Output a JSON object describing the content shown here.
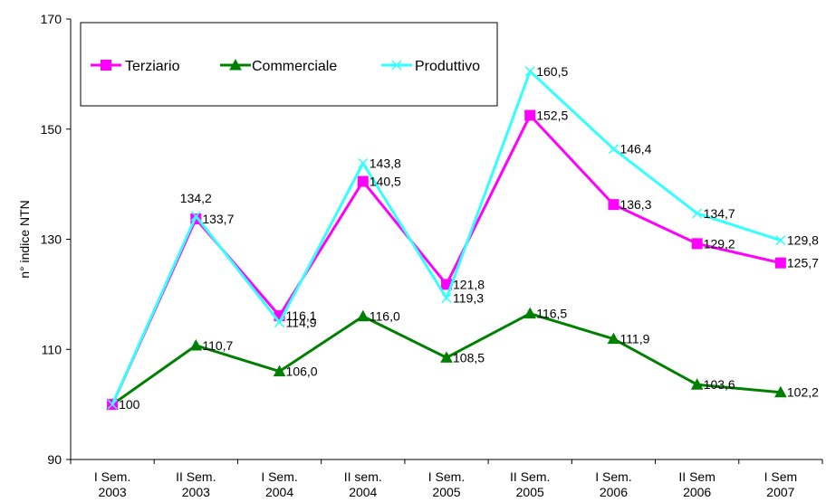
{
  "chart_data": {
    "type": "line",
    "title": "",
    "ylabel": "n° indice NTN",
    "ylim": [
      90,
      170
    ],
    "yticks": [
      90,
      110,
      130,
      150,
      170
    ],
    "grid": false,
    "legend_position": "top-left",
    "categories": [
      [
        "I Sem.",
        "2003"
      ],
      [
        "II Sem.",
        "2003"
      ],
      [
        "I Sem.",
        "2004"
      ],
      [
        "II sem.",
        "2004"
      ],
      [
        "I Sem.",
        "2005"
      ],
      [
        "II Sem.",
        "2005"
      ],
      [
        "I Sem.",
        "2006"
      ],
      [
        "II Sem",
        "2006"
      ],
      [
        "I Sem",
        "2007"
      ]
    ],
    "series": [
      {
        "name": "Terziario",
        "color": "#ff00ff",
        "marker": "square",
        "values": [
          100,
          133.7,
          116.1,
          140.5,
          121.8,
          152.5,
          136.3,
          129.2,
          125.7
        ],
        "labels": [
          "",
          "133,7",
          "116,1",
          "140,5",
          "121,8",
          "152,5",
          "136,3",
          "129,2",
          "125,7"
        ]
      },
      {
        "name": "Commerciale",
        "color": "#008000",
        "marker": "triangle",
        "values": [
          100,
          110.7,
          106.0,
          116.0,
          108.5,
          116.5,
          111.9,
          103.6,
          102.2
        ],
        "labels": [
          "100",
          "110,7",
          "106,0",
          "116,0",
          "108,5",
          "116,5",
          "111,9",
          "103,6",
          "102,2"
        ]
      },
      {
        "name": "Produttivo",
        "color": "#33ffff",
        "marker": "x",
        "values": [
          100,
          134.2,
          114.9,
          143.8,
          119.3,
          160.5,
          146.4,
          134.7,
          129.8
        ],
        "labels": [
          "",
          "134,2",
          "114,9",
          "143,8",
          "119,3",
          "160,5",
          "146,4",
          "134,7",
          "129,8"
        ]
      }
    ]
  }
}
